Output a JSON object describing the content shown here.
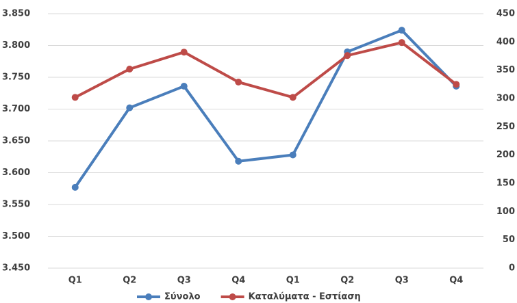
{
  "chart_data": {
    "type": "line",
    "categories": [
      "Q1",
      "Q2",
      "Q3",
      "Q4",
      "Q1",
      "Q2",
      "Q3",
      "Q4"
    ],
    "series": [
      {
        "name": "Σύνολο",
        "color": "#4a7ebb",
        "values": [
          3577,
          3702,
          3736,
          3618,
          3628,
          3790,
          3824,
          3736
        ]
      },
      {
        "name": "Καταλύματα - Εστίαση",
        "color": "#be4b48",
        "axis": "y2",
        "values": [
          302,
          352,
          382,
          329,
          302,
          376,
          399,
          325
        ]
      }
    ],
    "ylim": [
      3450,
      3850
    ],
    "yticks": [
      {
        "value": 3450,
        "label": "3.450"
      },
      {
        "value": 3500,
        "label": "3.500"
      },
      {
        "value": 3550,
        "label": "3.550"
      },
      {
        "value": 3600,
        "label": "3.600"
      },
      {
        "value": 3650,
        "label": "3.650"
      },
      {
        "value": 3700,
        "label": "3.700"
      },
      {
        "value": 3750,
        "label": "3.750"
      },
      {
        "value": 3800,
        "label": "3.800"
      },
      {
        "value": 3850,
        "label": "3.850"
      }
    ],
    "y2lim": [
      0,
      450
    ],
    "y2ticks": [
      0,
      50,
      100,
      150,
      200,
      250,
      300,
      350,
      400,
      450
    ],
    "grid": true,
    "legend": "bottom"
  }
}
